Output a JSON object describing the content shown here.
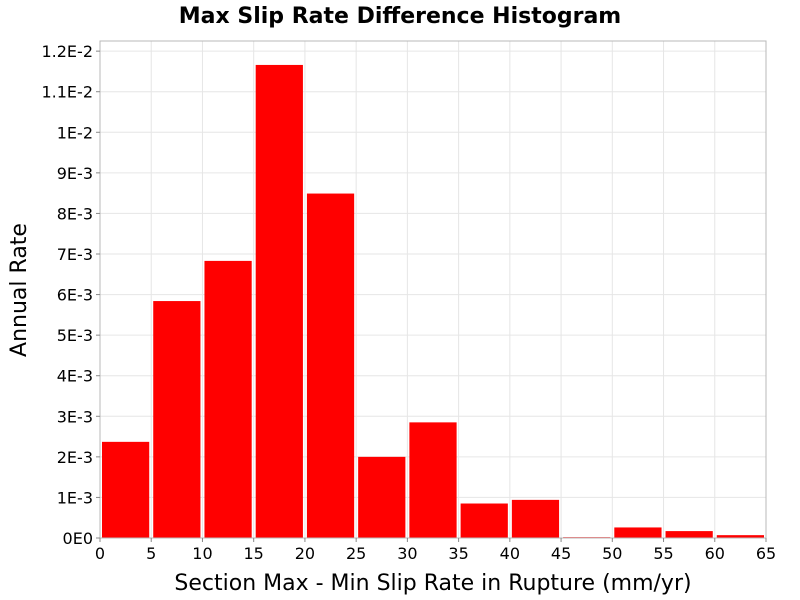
{
  "chart_data": {
    "type": "bar",
    "title": "Max Slip Rate Difference Histogram",
    "xlabel": "Section Max - Min Slip Rate in Rupture (mm/yr)",
    "ylabel": "Annual Rate",
    "xlim": [
      0,
      65
    ],
    "ylim": [
      0,
      0.01225
    ],
    "grid": true,
    "bar_color": "#ff0000",
    "bins": [
      {
        "start": 0,
        "end": 5,
        "value": 0.00237
      },
      {
        "start": 5,
        "end": 10,
        "value": 0.00584
      },
      {
        "start": 10,
        "end": 15,
        "value": 0.00683
      },
      {
        "start": 15,
        "end": 20,
        "value": 0.01166
      },
      {
        "start": 20,
        "end": 25,
        "value": 0.00849
      },
      {
        "start": 25,
        "end": 30,
        "value": 0.002
      },
      {
        "start": 30,
        "end": 35,
        "value": 0.00285
      },
      {
        "start": 35,
        "end": 40,
        "value": 0.00085
      },
      {
        "start": 40,
        "end": 45,
        "value": 0.00094
      },
      {
        "start": 45,
        "end": 50,
        "value": 2e-05
      },
      {
        "start": 50,
        "end": 55,
        "value": 0.00026
      },
      {
        "start": 55,
        "end": 60,
        "value": 0.00017
      },
      {
        "start": 60,
        "end": 65,
        "value": 7e-05
      }
    ],
    "x_ticks": [
      {
        "value": 0,
        "label": "0"
      },
      {
        "value": 5,
        "label": "5"
      },
      {
        "value": 10,
        "label": "10"
      },
      {
        "value": 15,
        "label": "15"
      },
      {
        "value": 20,
        "label": "20"
      },
      {
        "value": 25,
        "label": "25"
      },
      {
        "value": 30,
        "label": "30"
      },
      {
        "value": 35,
        "label": "35"
      },
      {
        "value": 40,
        "label": "40"
      },
      {
        "value": 45,
        "label": "45"
      },
      {
        "value": 50,
        "label": "50"
      },
      {
        "value": 55,
        "label": "55"
      },
      {
        "value": 60,
        "label": "60"
      },
      {
        "value": 65,
        "label": "65"
      }
    ],
    "y_ticks": [
      {
        "value": 0,
        "label": "0E0"
      },
      {
        "value": 0.001,
        "label": "1E-3"
      },
      {
        "value": 0.002,
        "label": "2E-3"
      },
      {
        "value": 0.003,
        "label": "3E-3"
      },
      {
        "value": 0.004,
        "label": "4E-3"
      },
      {
        "value": 0.005,
        "label": "5E-3"
      },
      {
        "value": 0.006,
        "label": "6E-3"
      },
      {
        "value": 0.007,
        "label": "7E-3"
      },
      {
        "value": 0.008,
        "label": "8E-3"
      },
      {
        "value": 0.009,
        "label": "9E-3"
      },
      {
        "value": 0.01,
        "label": "1E-2"
      },
      {
        "value": 0.011,
        "label": "1.1E-2"
      },
      {
        "value": 0.012,
        "label": "1.2E-2"
      }
    ]
  }
}
